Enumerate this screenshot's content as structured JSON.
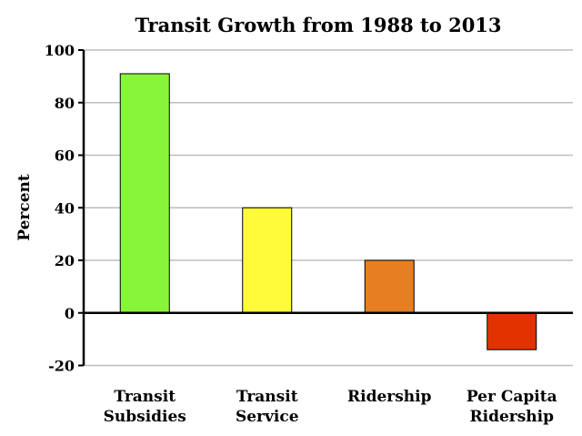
{
  "chart_data": {
    "type": "bar",
    "title": "Transit Growth from 1988 to 2013",
    "xlabel": "",
    "ylabel": "Percent",
    "ylim": [
      -20,
      100
    ],
    "yticks": [
      "100",
      "80",
      "60",
      "40",
      "20",
      "0",
      "-20"
    ],
    "grid": true,
    "categories": [
      [
        "Transit",
        "Subsidies"
      ],
      [
        "Transit",
        "Service"
      ],
      [
        "Ridership"
      ],
      [
        "Per Capita",
        "Ridership"
      ]
    ],
    "values": [
      91,
      40,
      20,
      -14
    ],
    "colors": [
      "#88f53a",
      "#fffb3a",
      "#e77e22",
      "#e23200"
    ]
  }
}
